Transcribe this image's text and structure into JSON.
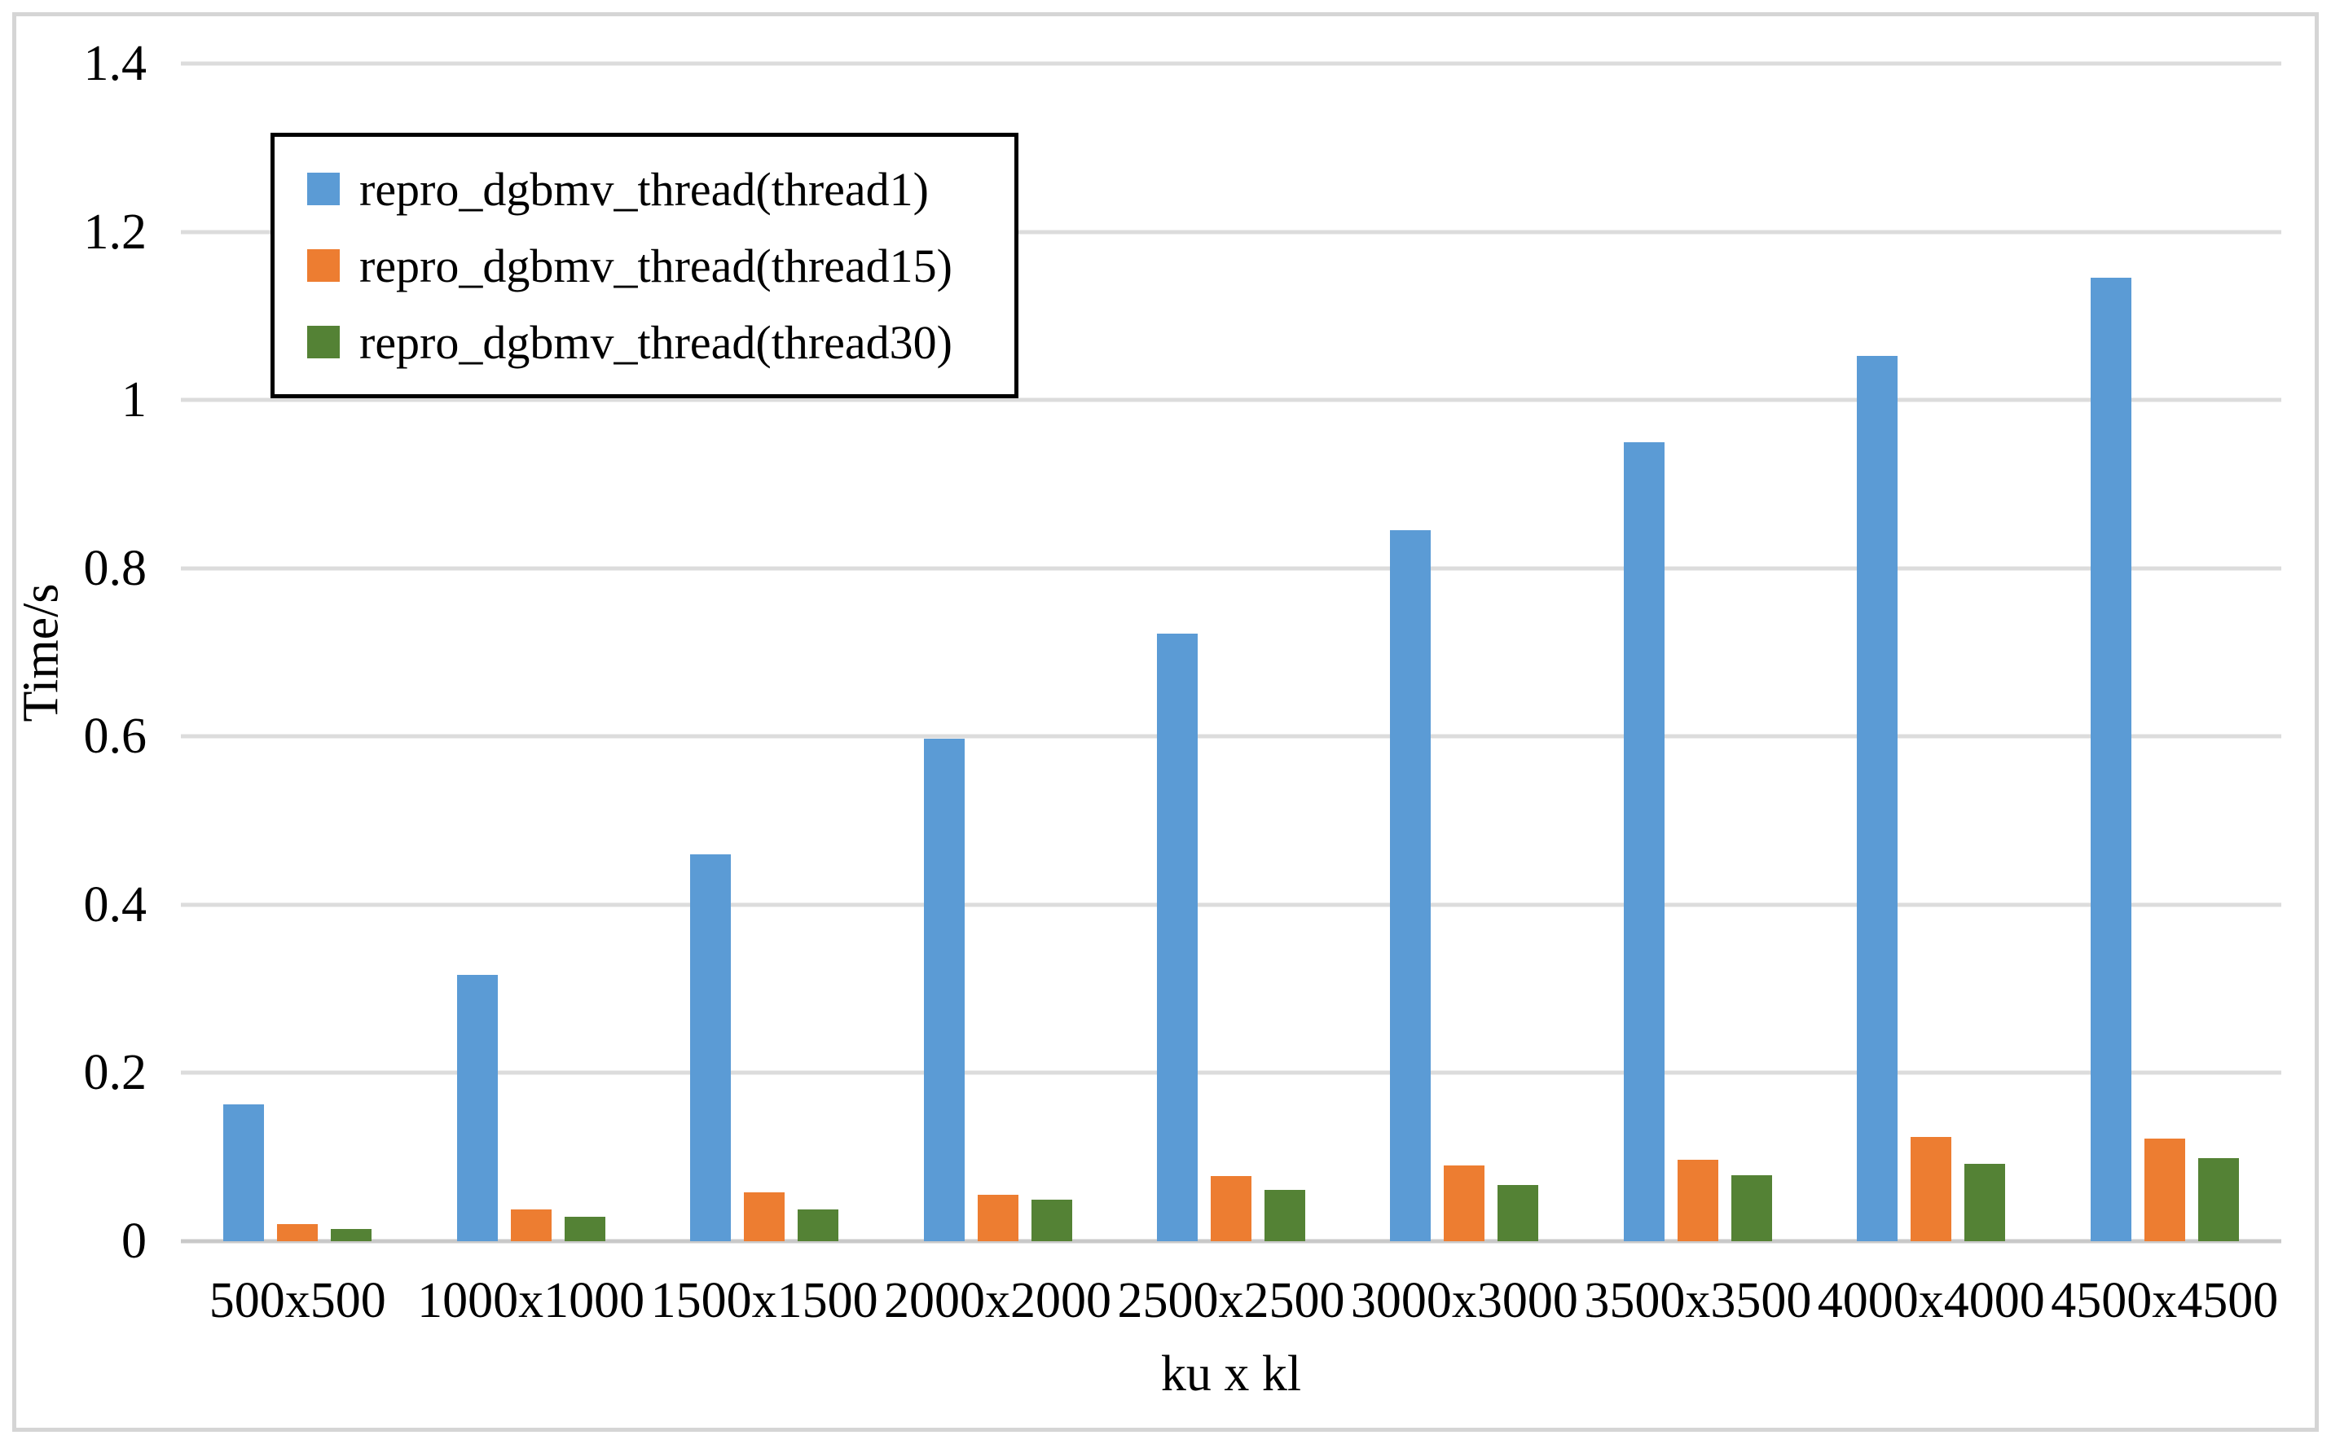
{
  "chart_data": {
    "type": "bar",
    "title": "",
    "xlabel": "ku x kl",
    "ylabel": "Time/s",
    "categories": [
      "500x500",
      "1000x1000",
      "1500x1500",
      "2000x2000",
      "2500x2500",
      "3000x3000",
      "3500x3500",
      "4000x4000",
      "4500x4500"
    ],
    "series": [
      {
        "name": "repro_dgbmv_thread(thread1)",
        "color": "#5B9BD5",
        "values": [
          0.163,
          0.317,
          0.46,
          0.597,
          0.722,
          0.845,
          0.95,
          1.052,
          1.145
        ]
      },
      {
        "name": "repro_dgbmv_thread(thread15)",
        "color": "#ED7D31",
        "values": [
          0.02,
          0.038,
          0.058,
          0.055,
          0.077,
          0.09,
          0.097,
          0.124,
          0.122
        ]
      },
      {
        "name": "repro_dgbmv_thread(thread30)",
        "color": "#548235",
        "values": [
          0.015,
          0.029,
          0.038,
          0.049,
          0.061,
          0.067,
          0.078,
          0.092,
          0.099
        ]
      }
    ],
    "ylim": [
      0,
      1.4
    ],
    "ytick_values": [
      0,
      0.2,
      0.4,
      0.6,
      0.8,
      1.0,
      1.2,
      1.4
    ],
    "ytick_labels": [
      "0",
      "0.2",
      "0.4",
      "0.6",
      "0.8",
      "1",
      "1.2",
      "1.4"
    ],
    "grid": true,
    "legend_position": "top-left"
  },
  "style_colors": {
    "gridline": "#dcdcdc",
    "zero_line": "#c9c9c9",
    "frame_border": "#d5d5d5",
    "legend_border": "#000000",
    "text": "#000000",
    "background": "#ffffff"
  }
}
